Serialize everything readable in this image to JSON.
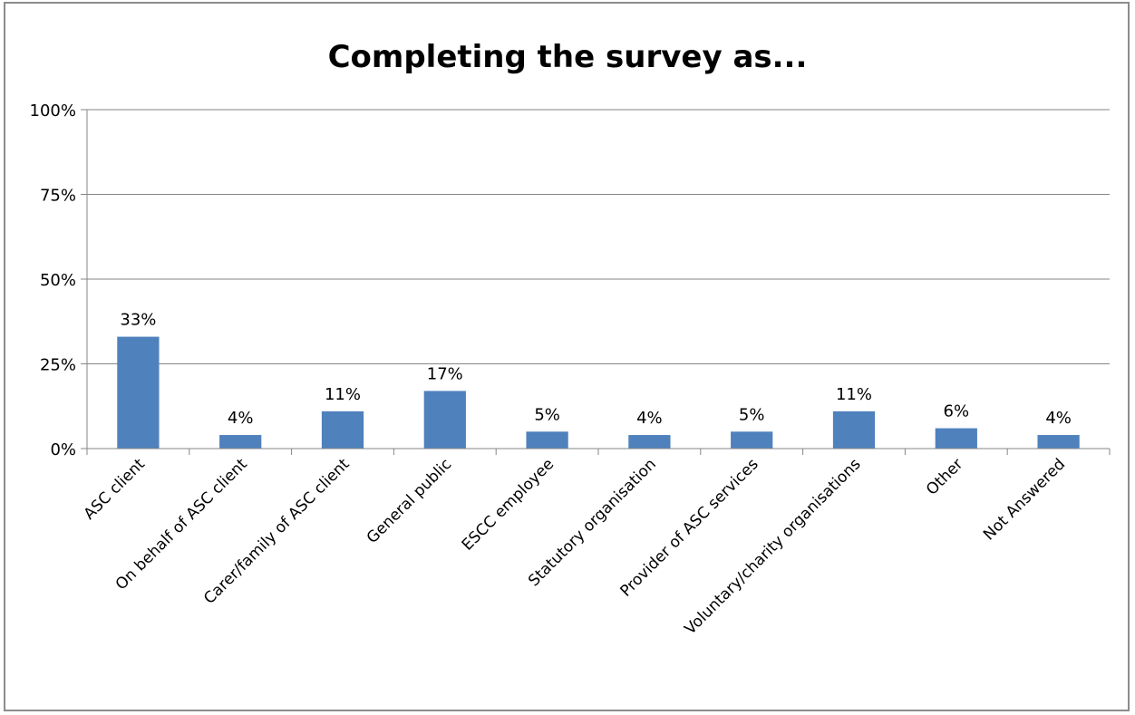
{
  "chart_data": {
    "type": "bar",
    "title": "Completing the survey as...",
    "categories": [
      "ASC client",
      "On behalf of ASC client",
      "Carer/family of ASC client",
      "General public",
      "ESCC employee",
      "Statutory organisation",
      "Provider of ASC services",
      "Voluntary/charity organisations",
      "Other",
      "Not Answered"
    ],
    "values": [
      33,
      4,
      11,
      17,
      5,
      4,
      5,
      11,
      6,
      4
    ],
    "data_labels": [
      "33%",
      "4%",
      "11%",
      "17%",
      "5%",
      "4%",
      "5%",
      "11%",
      "6%",
      "4%"
    ],
    "ylim": [
      0,
      100
    ],
    "yticks": [
      0,
      25,
      50,
      75,
      100
    ],
    "ytick_labels": [
      "0%",
      "25%",
      "50%",
      "75%",
      "100%"
    ],
    "grid": true,
    "legend": "none",
    "colors": {
      "bar": "#4f81bd",
      "grid": "#868686",
      "axis": "#868686",
      "text": "#000000"
    }
  }
}
